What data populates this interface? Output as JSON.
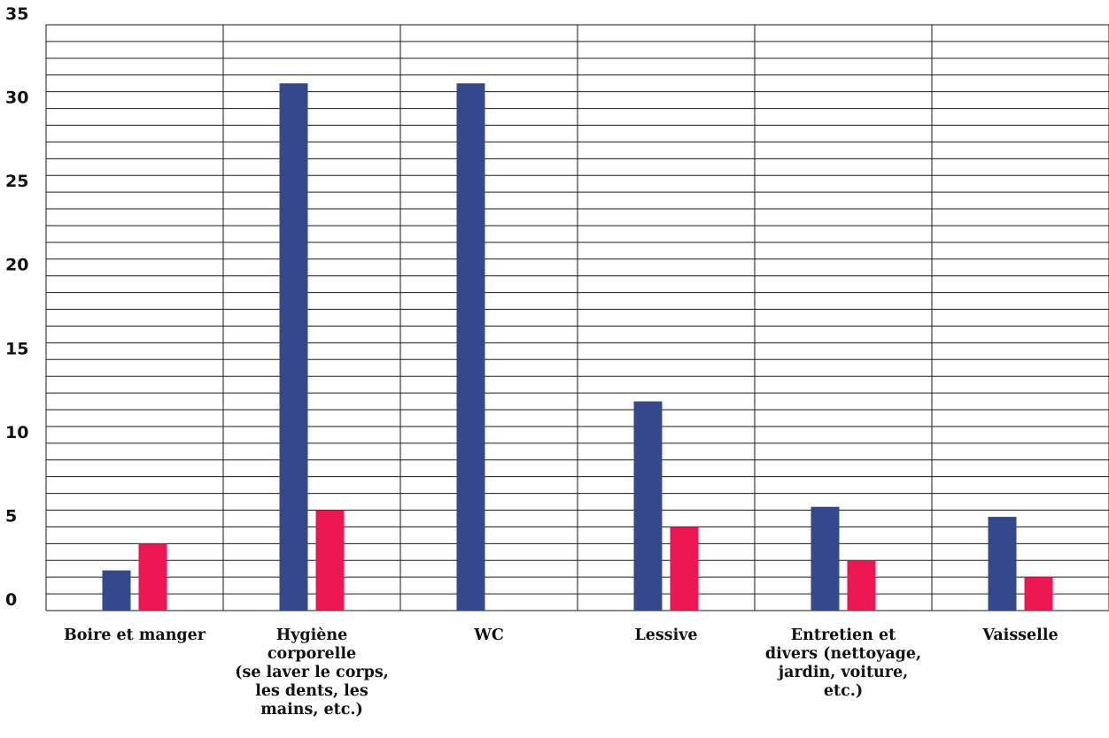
{
  "chart_data": {
    "type": "bar",
    "title": "",
    "xlabel": "",
    "ylabel": "",
    "ylim": [
      0,
      35
    ],
    "yticks": [
      0,
      5,
      10,
      15,
      20,
      25,
      30,
      35
    ],
    "minor_gridline_step": 1,
    "grid": true,
    "legend": "none",
    "categories": [
      "Boire et manger",
      "Hygiène corporelle (se laver le corps, les dents, les mains, etc.)",
      "WC",
      "Lessive",
      "Entretien et divers (nettoyage, jardin, voiture, etc.)",
      "Vaisselle"
    ],
    "category_label_lines": [
      [
        "Boire et manger"
      ],
      [
        "Hygiène",
        "corporelle",
        "(se laver le corps,",
        "les dents, les",
        "mains, etc.)"
      ],
      [
        "WC"
      ],
      [
        "Lessive"
      ],
      [
        "Entretien et",
        "divers (nettoyage,",
        "jardin, voiture,",
        "etc.)"
      ],
      [
        "Vaisselle"
      ]
    ],
    "series": [
      {
        "color": "#34488b",
        "values": [
          2.4,
          31.5,
          31.5,
          12.5,
          6.2,
          5.6
        ]
      },
      {
        "color": "#ec1651",
        "values": [
          4,
          6,
          0,
          5,
          3,
          2
        ]
      }
    ]
  }
}
